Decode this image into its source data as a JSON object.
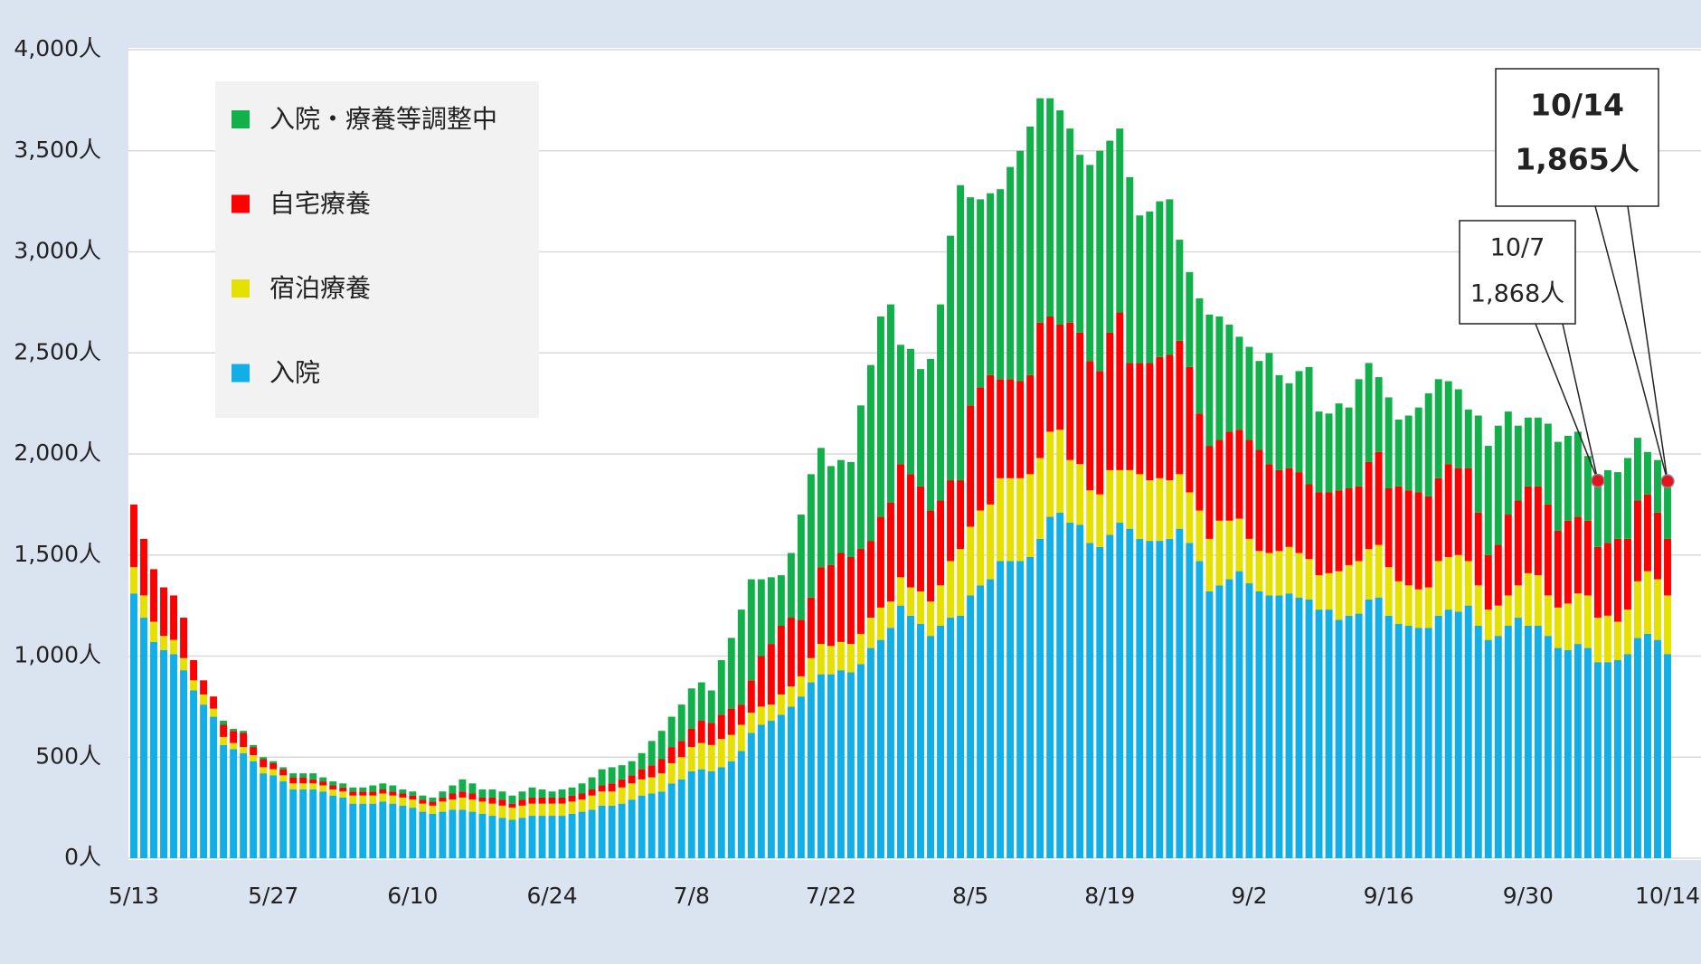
{
  "chart_data": {
    "type": "stacked_bar",
    "categories": [
      "5/13",
      null,
      null,
      null,
      null,
      null,
      null,
      null,
      null,
      null,
      null,
      null,
      null,
      null,
      "5/27",
      null,
      null,
      null,
      null,
      null,
      null,
      null,
      null,
      null,
      null,
      null,
      null,
      null,
      "6/10",
      null,
      null,
      null,
      null,
      null,
      null,
      null,
      null,
      null,
      null,
      null,
      null,
      null,
      "6/24",
      null,
      null,
      null,
      null,
      null,
      null,
      null,
      null,
      null,
      null,
      null,
      null,
      null,
      "7/8",
      null,
      null,
      null,
      null,
      null,
      null,
      null,
      null,
      null,
      null,
      null,
      null,
      null,
      "7/22",
      null,
      null,
      null,
      null,
      null,
      null,
      null,
      null,
      null,
      null,
      null,
      null,
      null,
      "8/5",
      null,
      null,
      null,
      null,
      null,
      null,
      null,
      null,
      null,
      null,
      null,
      null,
      null,
      "8/19",
      null,
      null,
      null,
      null,
      null,
      null,
      null,
      null,
      null,
      null,
      null,
      null,
      null,
      "9/2",
      null,
      null,
      null,
      null,
      null,
      null,
      null,
      null,
      null,
      null,
      null,
      null,
      null,
      "9/16",
      null,
      null,
      null,
      null,
      null,
      null,
      null,
      null,
      null,
      null,
      null,
      null,
      null,
      "9/30",
      null,
      null,
      null,
      null,
      null,
      null,
      null,
      null,
      null,
      null,
      null,
      null,
      null,
      "10/14"
    ],
    "series": [
      {
        "name": "入院",
        "color": "#12aee8",
        "values": [
          1310,
          1190,
          1070,
          1030,
          1010,
          930,
          830,
          760,
          700,
          560,
          540,
          520,
          480,
          420,
          410,
          380,
          340,
          340,
          340,
          330,
          310,
          300,
          270,
          270,
          270,
          280,
          270,
          260,
          250,
          230,
          220,
          230,
          240,
          240,
          230,
          220,
          210,
          200,
          190,
          200,
          210,
          210,
          210,
          210,
          220,
          230,
          240,
          260,
          260,
          270,
          290,
          310,
          320,
          330,
          370,
          390,
          430,
          440,
          430,
          450,
          480,
          530,
          620,
          660,
          680,
          710,
          750,
          800,
          870,
          910,
          910,
          930,
          920,
          960,
          1040,
          1080,
          1140,
          1250,
          1200,
          1160,
          1100,
          1150,
          1190,
          1200,
          1300,
          1350,
          1380,
          1470,
          1470,
          1470,
          1490,
          1580,
          1690,
          1710,
          1660,
          1650,
          1560,
          1540,
          1600,
          1660,
          1630,
          1580,
          1570,
          1570,
          1580,
          1630,
          1560,
          1470,
          1320,
          1350,
          1380,
          1420,
          1360,
          1320,
          1300,
          1300,
          1310,
          1290,
          1280,
          1230,
          1230,
          1180,
          1200,
          1210,
          1280,
          1290,
          1200,
          1160,
          1150,
          1140,
          1140,
          1200,
          1230,
          1220,
          1250,
          1150,
          1080,
          1100,
          1150,
          1190,
          1150,
          1150,
          1100,
          1040,
          1030,
          1060,
          1040,
          970,
          970,
          980,
          1010,
          1090,
          1110,
          1080,
          1010
        ]
      },
      {
        "name": "宿泊療養",
        "color": "#e6e000",
        "values": [
          130,
          110,
          100,
          70,
          70,
          60,
          50,
          50,
          40,
          40,
          30,
          30,
          30,
          30,
          30,
          30,
          30,
          30,
          30,
          30,
          30,
          30,
          40,
          40,
          40,
          40,
          40,
          40,
          40,
          40,
          40,
          50,
          50,
          60,
          60,
          60,
          60,
          60,
          60,
          60,
          60,
          60,
          60,
          60,
          60,
          60,
          70,
          70,
          70,
          80,
          80,
          80,
          80,
          90,
          100,
          110,
          120,
          130,
          130,
          140,
          130,
          130,
          100,
          90,
          80,
          100,
          100,
          100,
          120,
          150,
          140,
          140,
          140,
          150,
          150,
          160,
          130,
          140,
          140,
          160,
          170,
          200,
          280,
          330,
          340,
          370,
          370,
          410,
          410,
          410,
          410,
          400,
          420,
          410,
          310,
          300,
          260,
          260,
          320,
          260,
          290,
          320,
          300,
          310,
          290,
          270,
          250,
          250,
          260,
          320,
          290,
          260,
          220,
          200,
          210,
          220,
          230,
          220,
          200,
          170,
          180,
          240,
          250,
          260,
          250,
          260,
          240,
          210,
          200,
          190,
          200,
          270,
          260,
          280,
          220,
          200,
          150,
          150,
          150,
          160,
          260,
          250,
          200,
          200,
          230,
          250,
          260,
          220,
          230,
          190,
          220,
          280,
          310,
          300,
          290
        ]
      },
      {
        "name": "自宅療養",
        "color": "#ff0000",
        "values": [
          310,
          280,
          260,
          240,
          220,
          200,
          100,
          70,
          60,
          60,
          60,
          70,
          40,
          40,
          30,
          30,
          30,
          30,
          20,
          20,
          20,
          20,
          20,
          20,
          20,
          20,
          20,
          20,
          20,
          20,
          20,
          20,
          30,
          30,
          30,
          20,
          30,
          30,
          20,
          30,
          30,
          30,
          30,
          30,
          30,
          30,
          30,
          30,
          40,
          40,
          40,
          50,
          60,
          70,
          80,
          80,
          90,
          110,
          110,
          120,
          130,
          100,
          160,
          250,
          300,
          340,
          340,
          280,
          300,
          380,
          400,
          440,
          430,
          420,
          380,
          450,
          490,
          560,
          560,
          520,
          450,
          420,
          400,
          340,
          600,
          610,
          640,
          490,
          490,
          480,
          490,
          670,
          570,
          520,
          680,
          650,
          640,
          610,
          680,
          780,
          530,
          550,
          580,
          600,
          620,
          660,
          620,
          480,
          460,
          400,
          440,
          440,
          490,
          500,
          440,
          400,
          390,
          400,
          370,
          410,
          400,
          400,
          380,
          370,
          430,
          460,
          390,
          470,
          470,
          480,
          450,
          410,
          460,
          430,
          460,
          360,
          270,
          300,
          400,
          420,
          430,
          440,
          450,
          380,
          410,
          380,
          370,
          350,
          360,
          410,
          350,
          400,
          380,
          330,
          280
        ]
      },
      {
        "name": "入院・療養等調整中",
        "color": "#11b04a",
        "values": [
          0,
          0,
          0,
          0,
          0,
          0,
          0,
          0,
          0,
          20,
          10,
          10,
          10,
          10,
          10,
          10,
          20,
          20,
          30,
          20,
          20,
          20,
          20,
          20,
          30,
          30,
          30,
          20,
          20,
          20,
          20,
          30,
          40,
          60,
          50,
          40,
          40,
          40,
          40,
          40,
          50,
          40,
          30,
          40,
          40,
          50,
          60,
          80,
          80,
          70,
          70,
          80,
          120,
          140,
          150,
          180,
          200,
          190,
          160,
          270,
          350,
          470,
          500,
          380,
          330,
          250,
          320,
          520,
          610,
          590,
          490,
          460,
          470,
          710,
          870,
          990,
          980,
          590,
          620,
          580,
          750,
          970,
          1210,
          1460,
          1030,
          930,
          900,
          940,
          1050,
          1140,
          1230,
          1110,
          1080,
          1060,
          960,
          880,
          970,
          1090,
          950,
          910,
          920,
          730,
          750,
          770,
          770,
          500,
          470,
          570,
          650,
          610,
          530,
          460,
          460,
          440,
          550,
          470,
          420,
          500,
          580,
          400,
          390,
          430,
          400,
          530,
          490,
          370,
          450,
          330,
          370,
          420,
          510,
          490,
          410,
          390,
          290,
          480,
          540,
          590,
          510,
          370,
          340,
          340,
          400,
          440,
          420,
          420,
          320,
          328,
          360,
          330,
          400,
          310,
          210,
          260,
          285
        ]
      }
    ],
    "ylim": [
      0,
      4000
    ],
    "yticks": [
      {
        "value": 0,
        "label": "0人"
      },
      {
        "value": 500,
        "label": "500人"
      },
      {
        "value": 1000,
        "label": "1,000人"
      },
      {
        "value": 1500,
        "label": "1,500人"
      },
      {
        "value": 2000,
        "label": "2,000人"
      },
      {
        "value": 2500,
        "label": "2,500人"
      },
      {
        "value": 3000,
        "label": "3,000人"
      },
      {
        "value": 3500,
        "label": "3,500人"
      },
      {
        "value": 4000,
        "label": "4,000人"
      }
    ],
    "grid": true,
    "legend": "upper left",
    "annotations": [
      {
        "label": "10/7",
        "value": 1868,
        "value_label": "1,868人"
      },
      {
        "label": "10/14",
        "value": 1865,
        "value_label": "1,865人"
      }
    ]
  }
}
